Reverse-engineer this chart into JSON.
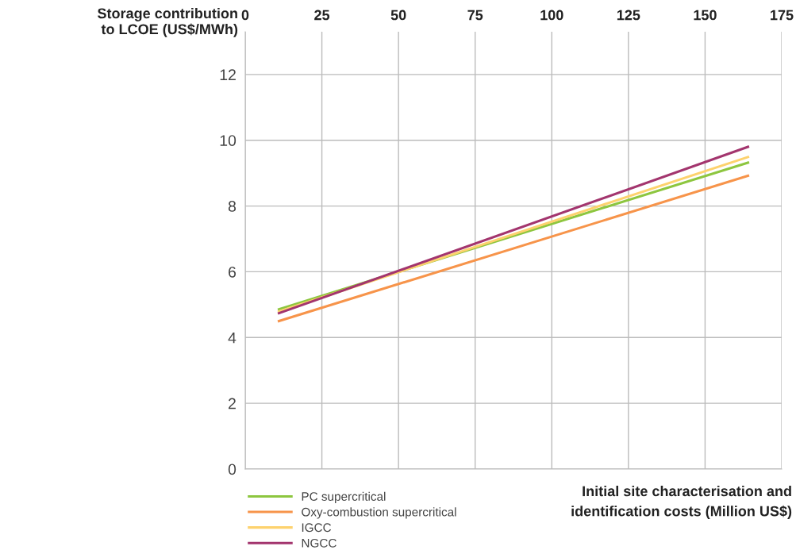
{
  "chart_data": {
    "type": "line",
    "ylabel": "Storage contribution\nto LCOE (US$/MWh)",
    "xlabel": "Initial site characterisation and\nidentification costs (Million US$)",
    "x": [
      11,
      164
    ],
    "series": [
      {
        "name": "PC supercritical",
        "color": "#8dc63f",
        "values": [
          4.86,
          9.32
        ]
      },
      {
        "name": "Oxy-combustion supercritical",
        "color": "#f7944a",
        "values": [
          4.5,
          8.92
        ]
      },
      {
        "name": "IGCC",
        "color": "#fdd26e",
        "values": [
          4.79,
          9.49
        ]
      },
      {
        "name": "NGCC",
        "color": "#a3356e",
        "values": [
          4.74,
          9.8
        ]
      }
    ],
    "xlim": [
      0,
      175
    ],
    "xticks": [
      0,
      25,
      50,
      75,
      100,
      125,
      150,
      175
    ],
    "ylim": [
      0,
      13.3
    ],
    "yticks": [
      0,
      2,
      4,
      6,
      8,
      10,
      12
    ],
    "grid": true,
    "legend": "bottom left",
    "marker": "none",
    "line_style": "solid"
  }
}
